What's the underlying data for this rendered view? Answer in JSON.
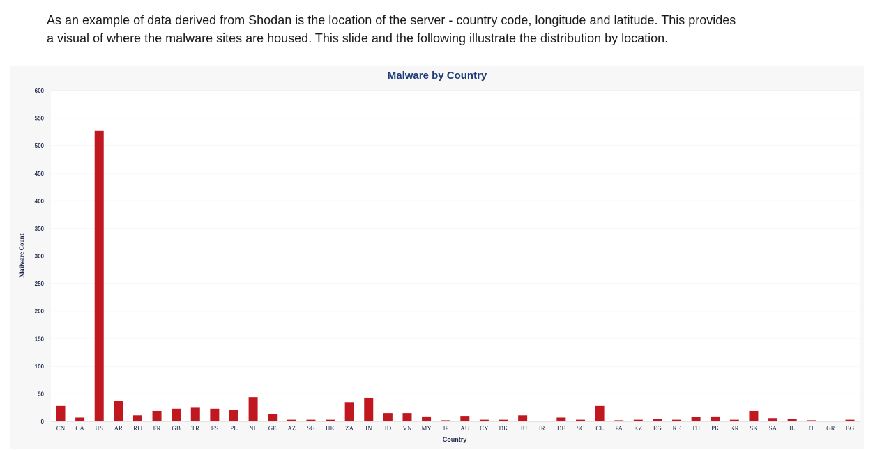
{
  "caption": {
    "line1": "As an example of data derived from Shodan is the  location of the server  - country code, longitude and latitude.  This provides",
    "line2": "a visual of where the malware sites are housed. This slide and the following illustrate the distribution by location."
  },
  "chart_data": {
    "type": "bar",
    "title": "Malware by Country",
    "xlabel": "Country",
    "ylabel": "Mailware Count",
    "ylim": [
      0,
      600
    ],
    "yticks": [
      0,
      50,
      100,
      150,
      200,
      250,
      300,
      350,
      400,
      450,
      500,
      550,
      600
    ],
    "grid": true,
    "bar_color": "#c0181e",
    "categories": [
      "CN",
      "CA",
      "US",
      "AR",
      "RU",
      "FR",
      "GB",
      "TR",
      "ES",
      "PL",
      "NL",
      "GE",
      "AZ",
      "SG",
      "HK",
      "ZA",
      "IN",
      "ID",
      "VN",
      "MY",
      "JP",
      "AU",
      "CY",
      "DK",
      "HU",
      "IR",
      "DE",
      "SC",
      "CL",
      "PA",
      "KZ",
      "EG",
      "KE",
      "TH",
      "PK",
      "KR",
      "SK",
      "SA",
      "IL",
      "IT",
      "GR",
      "BG"
    ],
    "values": [
      28,
      7,
      527,
      37,
      11,
      19,
      23,
      26,
      23,
      21,
      44,
      13,
      3,
      3,
      3,
      35,
      43,
      15,
      15,
      9,
      2,
      10,
      3,
      3,
      11,
      1,
      7,
      3,
      28,
      2,
      3,
      5,
      3,
      8,
      9,
      3,
      19,
      6,
      5,
      2,
      1,
      3
    ]
  }
}
